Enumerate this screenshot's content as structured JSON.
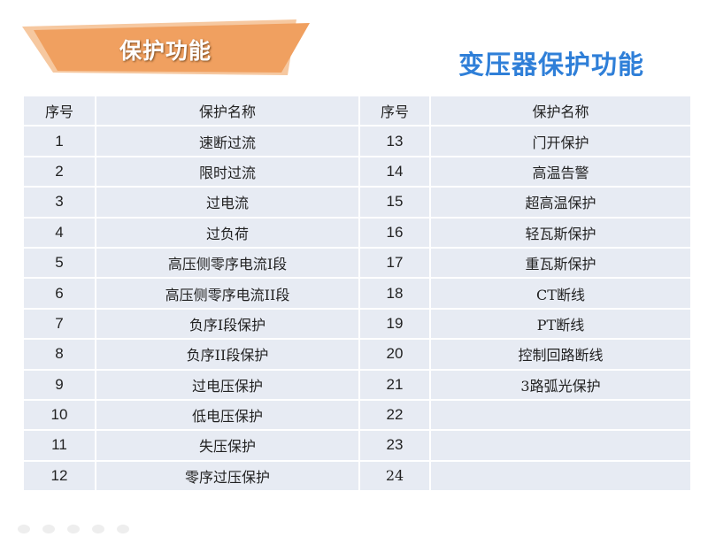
{
  "banner": {
    "text": "保护功能",
    "color": "#f0a060"
  },
  "title": "变压器保护功能",
  "title_color": "#2f7fd8",
  "table": {
    "headers": [
      "序号",
      "保护名称",
      "序号",
      "保护名称"
    ],
    "rows": [
      [
        "1",
        "速断过流",
        "13",
        "门开保护"
      ],
      [
        "2",
        "限时过流",
        "14",
        "高温告警"
      ],
      [
        "3",
        "过电流",
        "15",
        "超高温保护"
      ],
      [
        "4",
        "过负荷",
        "16",
        "轻瓦斯保护"
      ],
      [
        "5",
        "高压侧零序电流I段",
        "17",
        "重瓦斯保护"
      ],
      [
        "6",
        "高压侧零序电流II段",
        "18",
        "CT断线"
      ],
      [
        "7",
        "负序I段保护",
        "19",
        "PT断线"
      ],
      [
        "8",
        "负序II段保护",
        "20",
        "控制回路断线"
      ],
      [
        "9",
        "过电压保护",
        "21",
        "3路弧光保护"
      ],
      [
        "10",
        "低电压保护",
        "22",
        ""
      ],
      [
        "11",
        "失压保护",
        "23",
        ""
      ],
      [
        "12",
        "零序过压保护",
        "24",
        ""
      ]
    ]
  }
}
